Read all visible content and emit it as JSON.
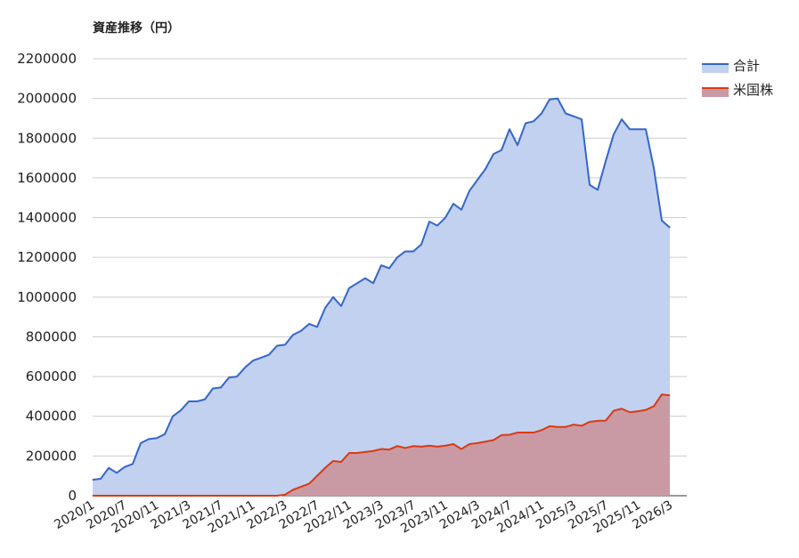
{
  "chart_data": {
    "type": "area",
    "title": "資産推移（円）",
    "xlabel": "",
    "ylabel": "",
    "ylim": [
      0,
      2200000
    ],
    "yticks": [
      0,
      200000,
      400000,
      600000,
      800000,
      1000000,
      1200000,
      1400000,
      1600000,
      1800000,
      2000000,
      2200000
    ],
    "ytick_labels": [
      "0",
      "200000",
      "400000",
      "600000",
      "800000",
      "1000000",
      "1200000",
      "1400000",
      "1600000",
      "1800000",
      "2000000",
      "2200000"
    ],
    "x_start": "2020/1",
    "x_end": "2026/3",
    "xtick_labels": [
      "2020/1",
      "2020/7",
      "2020/11",
      "2021/3",
      "2021/7",
      "2021/11",
      "2022/3",
      "2022/7",
      "2022/11",
      "2023/3",
      "2023/7",
      "2023/11",
      "2024/3",
      "2024/7",
      "2024/11",
      "2025/3",
      "2025/7",
      "2025/11",
      "2026/3"
    ],
    "grid": true,
    "legend_position": "top-right",
    "series": [
      {
        "name": "合計",
        "color": "#3366cc",
        "fill": "#c2d1f0",
        "values": [
          80000,
          85000,
          140000,
          115000,
          145000,
          160000,
          265000,
          285000,
          290000,
          310000,
          400000,
          430000,
          475000,
          475000,
          485000,
          540000,
          545000,
          595000,
          600000,
          645000,
          680000,
          695000,
          710000,
          755000,
          760000,
          810000,
          830000,
          865000,
          850000,
          945000,
          1000000,
          955000,
          1045000,
          1070000,
          1095000,
          1070000,
          1160000,
          1145000,
          1200000,
          1230000,
          1230000,
          1265000,
          1380000,
          1360000,
          1400000,
          1470000,
          1440000,
          1535000,
          1590000,
          1645000,
          1720000,
          1740000,
          1845000,
          1765000,
          1875000,
          1885000,
          1925000,
          1995000,
          2000000,
          1925000,
          1910000,
          1895000,
          1565000,
          1540000,
          1685000,
          1820000,
          1895000,
          1845000,
          1845000,
          1845000,
          1650000,
          1385000,
          1350000
        ]
      },
      {
        "name": "米国株",
        "color": "#dc3912",
        "fill": "#c99aa4",
        "values": [
          0,
          0,
          0,
          0,
          0,
          0,
          0,
          0,
          0,
          0,
          0,
          0,
          0,
          0,
          0,
          0,
          0,
          0,
          0,
          0,
          0,
          0,
          0,
          0,
          5000,
          30000,
          45000,
          60000,
          100000,
          140000,
          175000,
          170000,
          215000,
          215000,
          220000,
          225000,
          235000,
          232000,
          250000,
          240000,
          250000,
          247000,
          252000,
          247000,
          252000,
          260000,
          235000,
          260000,
          265000,
          272000,
          280000,
          305000,
          307000,
          318000,
          318000,
          318000,
          330000,
          350000,
          346000,
          346000,
          358000,
          352000,
          372000,
          377000,
          378000,
          428000,
          438000,
          420000,
          425000,
          432000,
          450000,
          510000,
          505000
        ]
      }
    ]
  }
}
